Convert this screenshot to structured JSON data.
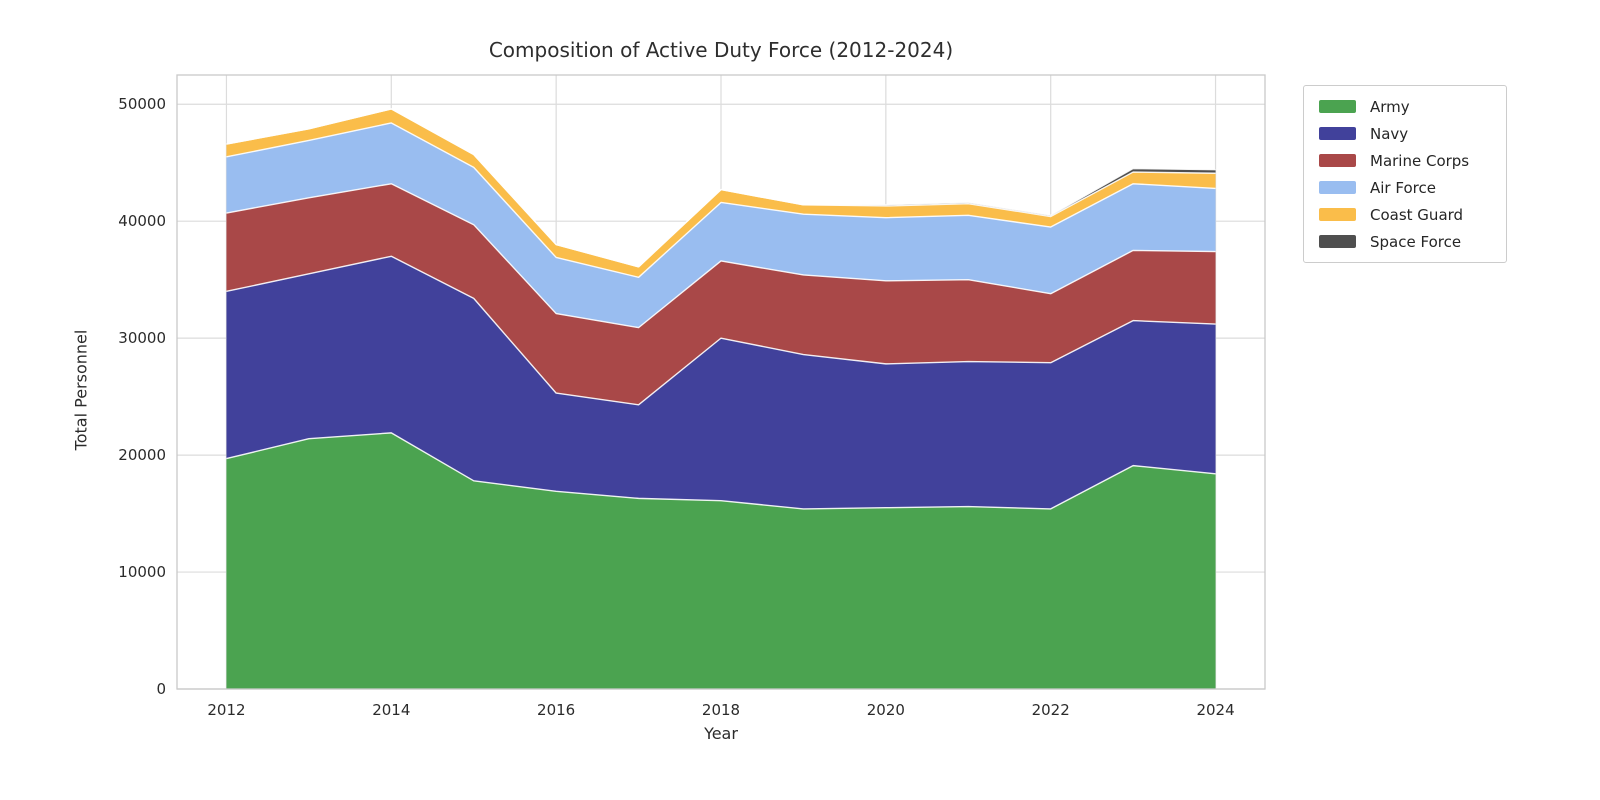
{
  "chart_data": {
    "type": "area",
    "stacked": true,
    "title": "Composition of Active Duty Force (2012-2024)",
    "xlabel": "Year",
    "ylabel": "Total Personnel",
    "x": [
      2012,
      2013,
      2014,
      2015,
      2016,
      2017,
      2018,
      2019,
      2020,
      2021,
      2022,
      2023,
      2024
    ],
    "series": [
      {
        "name": "Army",
        "color": "#4ba350",
        "values": [
          19700,
          21400,
          21900,
          17800,
          16900,
          16300,
          16100,
          15400,
          15500,
          15600,
          15400,
          19100,
          18400
        ]
      },
      {
        "name": "Navy",
        "color": "#41419b",
        "values": [
          14300,
          14100,
          15100,
          15600,
          8400,
          8000,
          13900,
          13200,
          12300,
          12400,
          12500,
          12400,
          12800
        ]
      },
      {
        "name": "Marine Corps",
        "color": "#a94848",
        "values": [
          6700,
          6500,
          6200,
          6300,
          6800,
          6600,
          6600,
          6800,
          7100,
          7000,
          5900,
          6000,
          6200
        ]
      },
      {
        "name": "Air Force",
        "color": "#99bdf0",
        "values": [
          4800,
          4900,
          5200,
          4900,
          4800,
          4300,
          5000,
          5200,
          5400,
          5500,
          5700,
          5700,
          5400
        ]
      },
      {
        "name": "Coast Guard",
        "color": "#fabd4a",
        "values": [
          1100,
          1000,
          1200,
          1100,
          1100,
          900,
          1100,
          800,
          1000,
          1000,
          900,
          1000,
          1300
        ]
      },
      {
        "name": "Space Force",
        "color": "#4f4f4f",
        "values": [
          0,
          0,
          0,
          0,
          0,
          0,
          0,
          0,
          100,
          100,
          100,
          300,
          300
        ]
      }
    ],
    "xlim": [
      2011.4,
      2024.6
    ],
    "ylim": [
      0,
      52500
    ],
    "xticks": [
      2012,
      2014,
      2016,
      2018,
      2020,
      2022,
      2024
    ],
    "yticks": [
      0,
      10000,
      20000,
      30000,
      40000,
      50000
    ],
    "grid": true,
    "legend_position": "outside upper right",
    "grid_color": "#dcdcdc",
    "spine_color": "#c9c9c9",
    "edge_color": "#ffffff"
  }
}
